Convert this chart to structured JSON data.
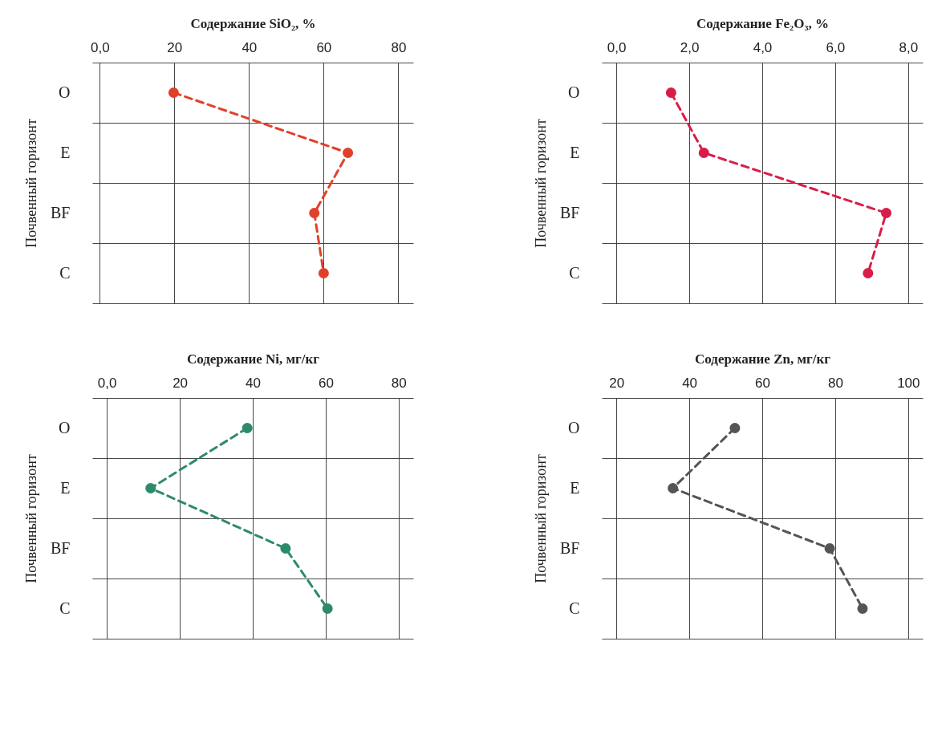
{
  "chart_data": [
    {
      "type": "line",
      "xlabel": "Содержание SiO₂, %",
      "ylabel": "Почвенный горизонт",
      "categories": [
        "O",
        "E",
        "BF",
        "C"
      ],
      "values": [
        19.8,
        66.5,
        57.5,
        60
      ],
      "color": "#e0402a",
      "orientation": "horizontal",
      "xlim": [
        -2,
        84
      ],
      "xticks": [
        {
          "value": 0,
          "label": "0,0"
        },
        20,
        40,
        60,
        80
      ],
      "grid": true,
      "marker": "circle",
      "line_style": "dashed"
    },
    {
      "type": "line",
      "xlabel": "Содержание Fe₂O₃, %",
      "ylabel": "Почвенный горизонт",
      "categories": [
        "O",
        "E",
        "BF",
        "C"
      ],
      "values": [
        1.5,
        2.4,
        7.4,
        6.9
      ],
      "color": "#d81e48",
      "orientation": "horizontal",
      "xlim": [
        -0.4,
        8.4
      ],
      "xticks": [
        {
          "value": 0,
          "label": "0,0"
        },
        {
          "value": 2,
          "label": "2,0"
        },
        {
          "value": 4,
          "label": "4,0"
        },
        {
          "value": 6,
          "label": "6,0"
        },
        {
          "value": 8,
          "label": "8,0"
        }
      ],
      "grid": true,
      "marker": "circle",
      "line_style": "dashed"
    },
    {
      "type": "line",
      "xlabel": "Содержание Ni, мг/кг",
      "ylabel": "Почвенный горизонт",
      "categories": [
        "O",
        "E",
        "BF",
        "C"
      ],
      "values": [
        38.5,
        12,
        49,
        60.5
      ],
      "color": "#2e8a6c",
      "orientation": "horizontal",
      "xlim": [
        -4,
        84
      ],
      "xticks": [
        {
          "value": 0,
          "label": "0,0"
        },
        20,
        40,
        60,
        80
      ],
      "grid": true,
      "marker": "circle",
      "line_style": "dashed"
    },
    {
      "type": "line",
      "xlabel": "Содержание Zn, мг/кг",
      "ylabel": "Почвенный горизонт",
      "categories": [
        "O",
        "E",
        "BF",
        "C"
      ],
      "values": [
        52.5,
        35.5,
        78.5,
        87.5
      ],
      "color": "#555555",
      "orientation": "horizontal",
      "xlim": [
        16,
        104
      ],
      "xticks": [
        20,
        40,
        60,
        80,
        100
      ],
      "grid": true,
      "marker": "circle",
      "line_style": "dashed"
    }
  ]
}
